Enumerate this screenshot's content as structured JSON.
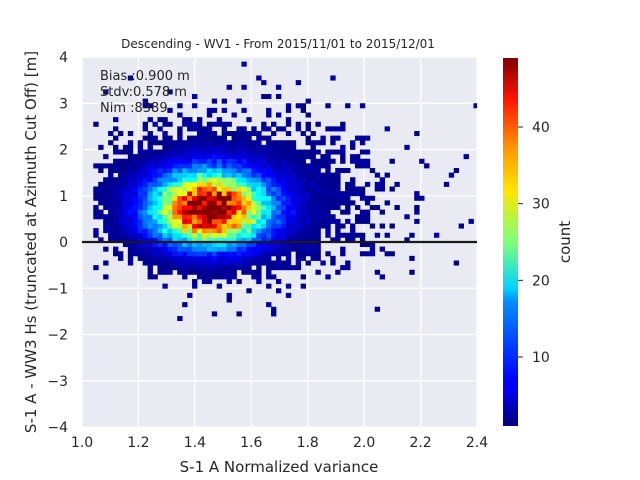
{
  "chart_data": {
    "type": "heatmap",
    "title": "Descending - WV1 - From 2015/11/01 to 2015/12/01",
    "xlabel": "S-1 A Normalized variance",
    "ylabel": "S-1 A - WW3 Hs (truncated at Azimuth Cut Off) [m]",
    "xlim": [
      1.0,
      2.4
    ],
    "ylim": [
      -4,
      4
    ],
    "x_ticks": [
      "1.0",
      "1.2",
      "1.4",
      "1.6",
      "1.8",
      "2.0",
      "2.2",
      "2.4"
    ],
    "y_ticks": [
      "−4",
      "−3",
      "−2",
      "−1",
      "0",
      "1",
      "2",
      "3",
      "4"
    ],
    "grid": true,
    "reference_line_y": 0,
    "annotations": [
      "Bias :0.900 m",
      "Stdv:0.578 m",
      "Nim :8389"
    ],
    "colorbar": {
      "label": "count",
      "range": [
        1,
        49
      ],
      "ticks": [
        "10",
        "20",
        "30",
        "40"
      ],
      "colormap": "jet"
    },
    "density_model": {
      "description": "2D histogram counts; approximate reconstruction of the point cloud",
      "peak_count": 49,
      "center": [
        1.45,
        0.72
      ],
      "spread_x": 0.13,
      "spread_y": 0.5,
      "rotation": 0.3,
      "bin_x": 0.0175,
      "bin_y": 0.1
    }
  }
}
